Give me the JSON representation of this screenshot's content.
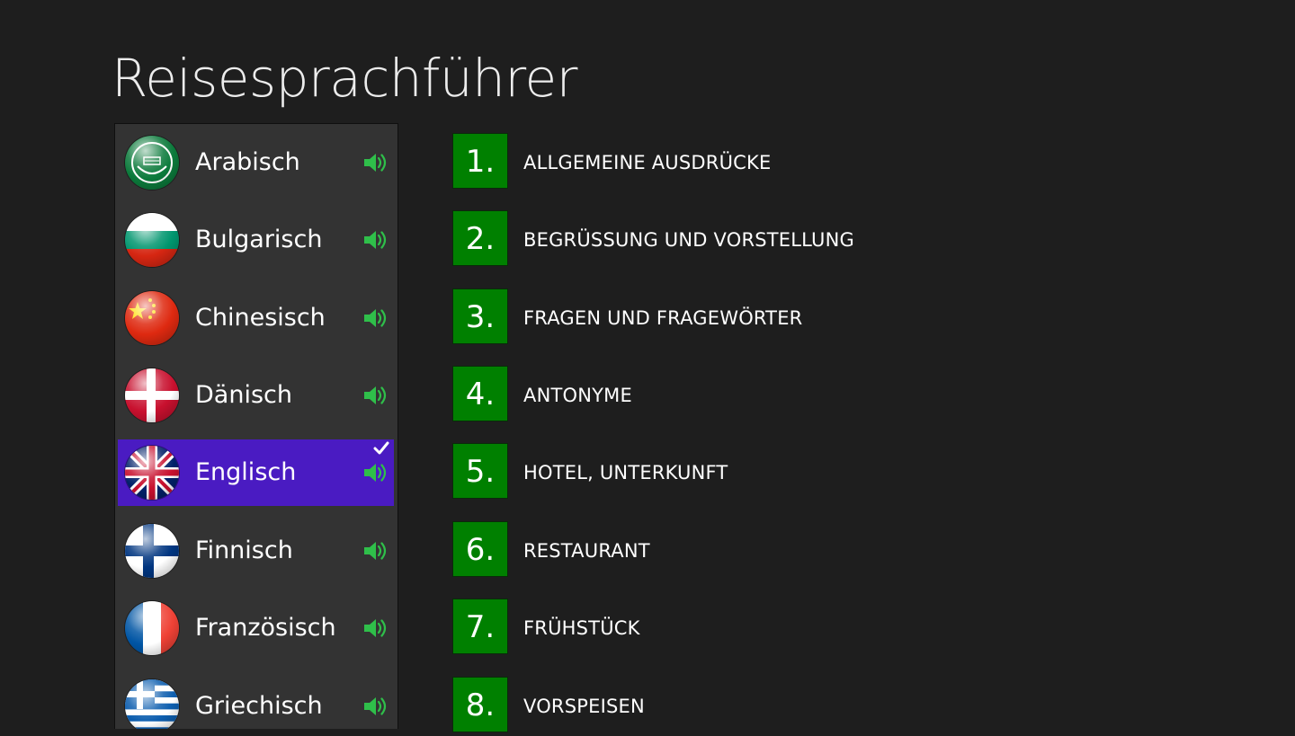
{
  "app": {
    "title": "Reisesprachführer"
  },
  "colors": {
    "background": "#1e1e1e",
    "panel": "#333333",
    "selected": "#4a1bc2",
    "category_tile": "#008000",
    "speaker": "#2fbf4a"
  },
  "languages": [
    {
      "label": "Arabisch",
      "flag": "arab-league-flag-icon"
    },
    {
      "label": "Bulgarisch",
      "flag": "bulgaria-flag-icon"
    },
    {
      "label": "Chinesisch",
      "flag": "china-flag-icon"
    },
    {
      "label": "Dänisch",
      "flag": "denmark-flag-icon"
    },
    {
      "label": "Englisch",
      "flag": "uk-flag-icon",
      "selected": true
    },
    {
      "label": "Finnisch",
      "flag": "finland-flag-icon"
    },
    {
      "label": "Französisch",
      "flag": "france-flag-icon"
    },
    {
      "label": "Griechisch",
      "flag": "greece-flag-icon"
    }
  ],
  "categories": [
    {
      "num": "1.",
      "label": "ALLGEMEINE AUSDRÜCKE"
    },
    {
      "num": "2.",
      "label": "BEGRÜSSUNG UND VORSTELLUNG"
    },
    {
      "num": "3.",
      "label": "FRAGEN UND FRAGEWÖRTER"
    },
    {
      "num": "4.",
      "label": "ANTONYME"
    },
    {
      "num": "5.",
      "label": "HOTEL, UNTERKUNFT"
    },
    {
      "num": "6.",
      "label": "RESTAURANT"
    },
    {
      "num": "7.",
      "label": "FRÜHSTÜCK"
    },
    {
      "num": "8.",
      "label": "VORSPEISEN"
    }
  ]
}
